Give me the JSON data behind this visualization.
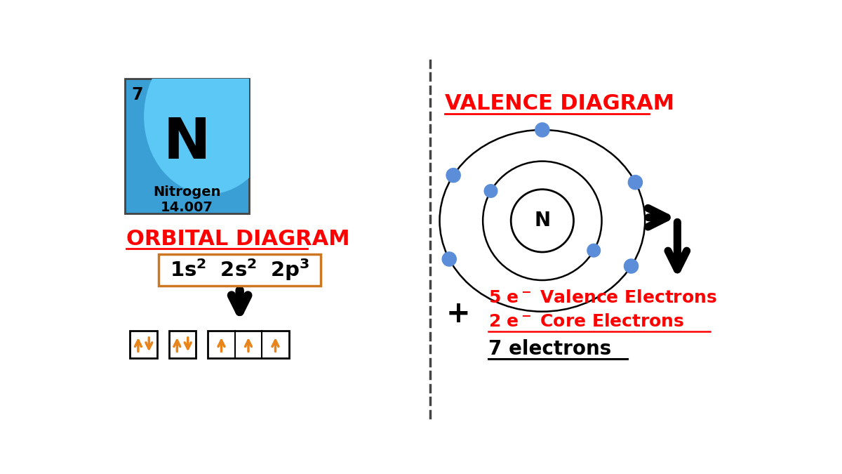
{
  "bg_color": "#ffffff",
  "element_symbol": "N",
  "element_name": "Nitrogen",
  "element_number": "7",
  "element_weight": "14.007",
  "element_box_color_top": "#5bc8f5",
  "element_box_color_bottom": "#3a9fd4",
  "orbital_diagram_title": "ORBITAL DIAGRAM",
  "config_box_color": "#cc7722",
  "arrow_color": "#e8841a",
  "valence_diagram_title": "VALENCE DIAGRAM",
  "nucleus_label": "N",
  "electron_color": "#5b8dd9",
  "line1": "5 e⁻ Valence Electrons",
  "line2": "2 e⁻ Core Electrons",
  "line3": "7 electrons",
  "plus_sign": "+",
  "title_color": "#ff0000",
  "black_color": "#000000",
  "inner_angles": [
    150,
    330
  ],
  "outer_angles": [
    90,
    25,
    330,
    205,
    150
  ]
}
